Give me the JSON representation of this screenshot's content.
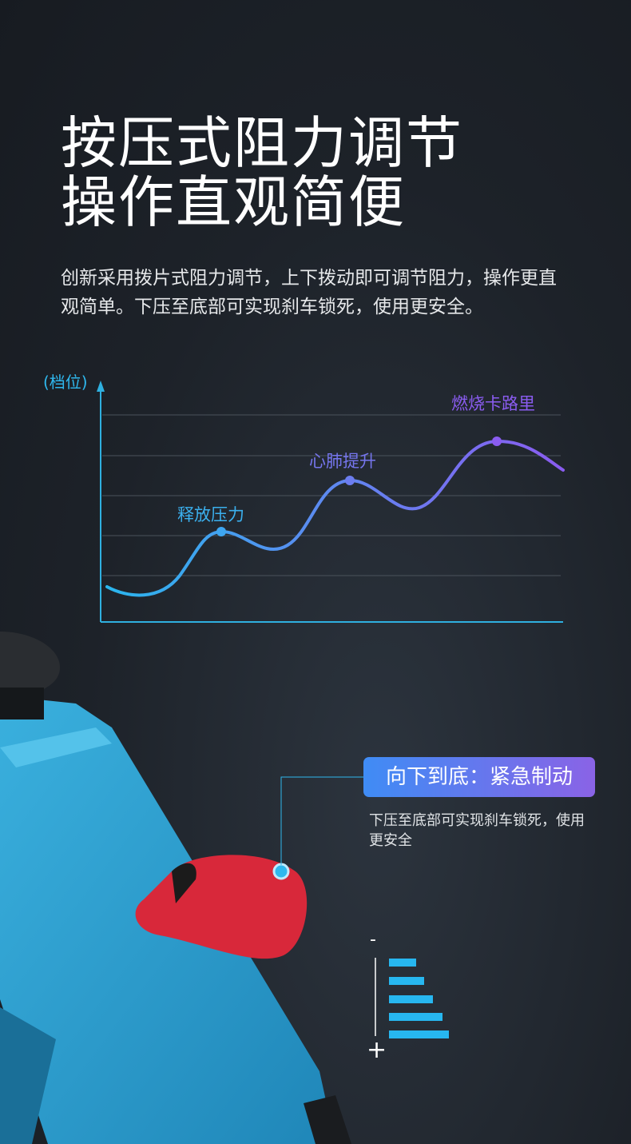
{
  "heading": {
    "line1": "按压式阻力调节",
    "line2": "操作直观简便"
  },
  "description": "创新采用拨片式阻力调节，上下拨动即可调节阻力，操作更直观简单。下压至底部可实现刹车锁死，使用更安全。",
  "chart": {
    "y_axis_label": "(档位)",
    "annotations": [
      "释放压力",
      "心肺提升",
      "燃烧卡路里"
    ],
    "colors": {
      "start": "#2ab6ee",
      "end": "#8a5cf0"
    }
  },
  "callout": {
    "title": "向下到底：紧急制动",
    "text": "下压至底部可实现刹车锁死，使用更安全"
  },
  "resistance_indicator": {
    "minus": "-",
    "plus": "+",
    "levels": 5
  },
  "colors": {
    "background": "#1d2229",
    "accent_blue": "#27b7f0",
    "frame_blue": "#2a9ccc",
    "lever_red": "#d8283a"
  }
}
